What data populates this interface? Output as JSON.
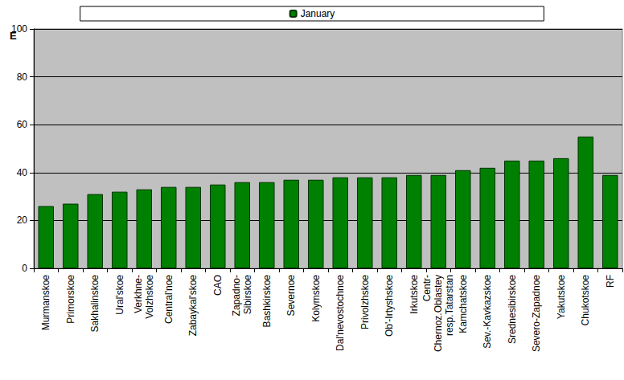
{
  "chart_data": {
    "type": "bar",
    "ylabel": "E",
    "categories": [
      "Murmanskoe",
      "Primorskoe",
      "Sakhalinskoe",
      "Ural'skoe",
      "Verkhne-\nVolzhskoe",
      "Central'noe",
      "Zabaykal'skoe",
      "CAO",
      "Zapadno-\nSibirskoe",
      "Bashkirskoe",
      "Severnoe",
      "Kolymskoe",
      "Dal'nevostochnoe",
      "Privolzhskoe",
      "Ob'-Irtyshskoe",
      "Irkutskoe",
      "Centr-\nChernoz.Oblastey\nresp.Tatarstan",
      "Kamchatskoe",
      "Sev.-Kavkazskoe",
      "Srednesibirskoe",
      "Severo-Zapadnoe",
      "Yakutskoe",
      "Chukotskoe",
      "RF"
    ],
    "series": [
      {
        "name": "January",
        "color": "#008000",
        "values": [
          26,
          27,
          31,
          32,
          33,
          34,
          34,
          35,
          36,
          36,
          37,
          37,
          38,
          38,
          38,
          39,
          39,
          41,
          42,
          45,
          45,
          46,
          55,
          39
        ]
      }
    ],
    "ylim": [
      0,
      100
    ],
    "yticks": [
      0,
      20,
      40,
      60,
      80,
      100
    ],
    "grid": true,
    "legend": "top"
  }
}
